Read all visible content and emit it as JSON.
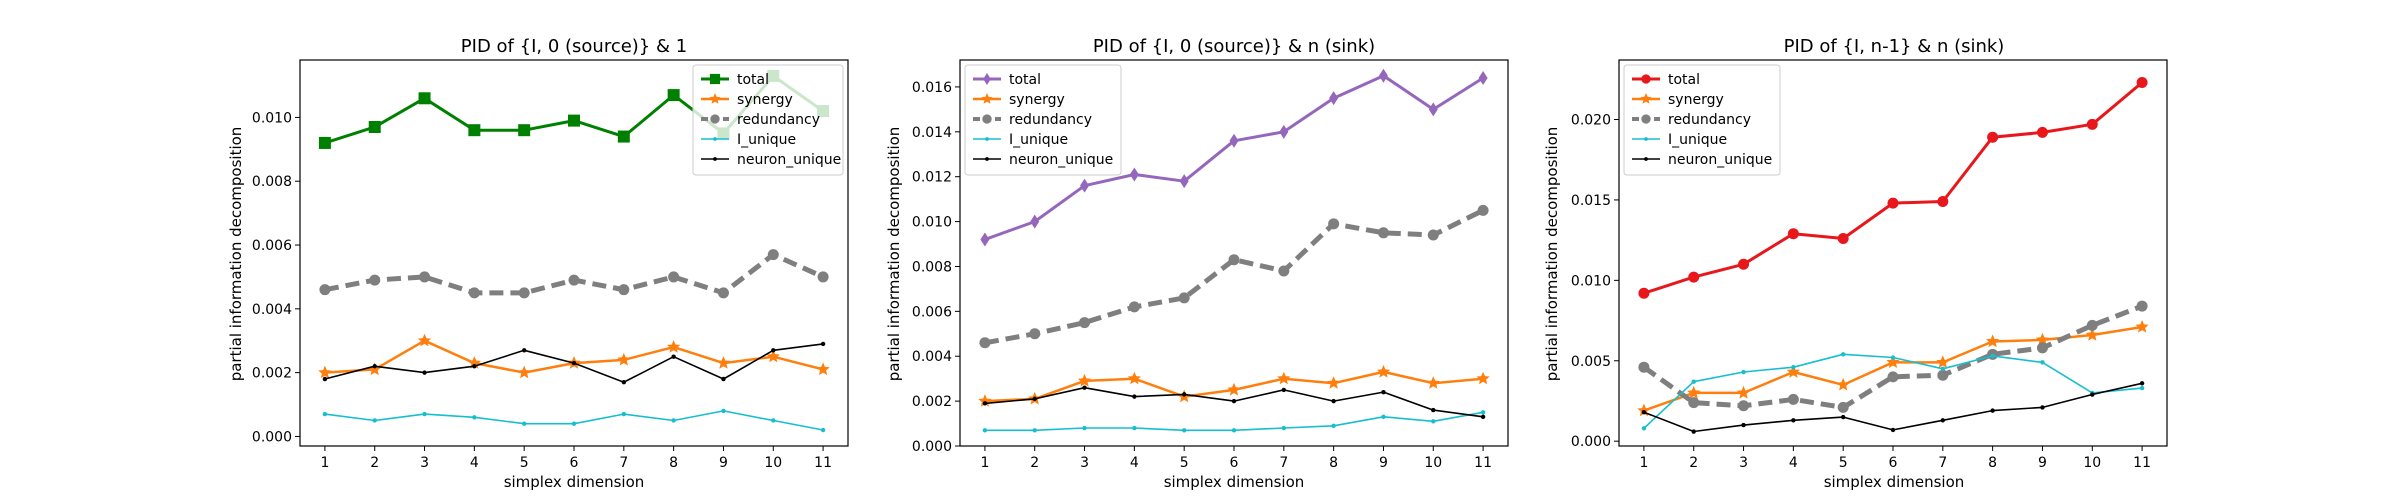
{
  "figure": {
    "series_styles": {
      "synergy": {
        "color": "#ff7f0e",
        "marker": "star",
        "dash": "solid",
        "lw": 2.5
      },
      "redundancy": {
        "color": "#7f7f7f",
        "marker": "circle",
        "dash": "dashed",
        "lw": 5
      },
      "I_unique": {
        "color": "#17becf",
        "marker": "point",
        "dash": "solid",
        "lw": 1.6
      },
      "neuron_unique": {
        "color": "#000000",
        "marker": "point",
        "dash": "solid",
        "lw": 1.6
      }
    },
    "panels": [
      {
        "name": "panel-1"
      },
      {
        "name": "panel-2"
      },
      {
        "name": "panel-3"
      }
    ]
  },
  "chart_data": [
    {
      "type": "line",
      "title": "PID of {I, 0 (source)} & 1",
      "xlabel": "simplex dimension",
      "ylabel": "partial information decomposition",
      "x": [
        1,
        2,
        3,
        4,
        5,
        6,
        7,
        8,
        9,
        10,
        11
      ],
      "xlim": [
        0.5,
        11.5
      ],
      "ylim": [
        -0.0003,
        0.0118
      ],
      "yticks": [
        0.0,
        0.002,
        0.004,
        0.006,
        0.008,
        0.01
      ],
      "ytick_labels": [
        "0.000",
        "0.002",
        "0.004",
        "0.006",
        "0.008",
        "0.010"
      ],
      "grid": false,
      "legend": "top-right",
      "series": [
        {
          "name": "total",
          "color": "#008000",
          "marker": "square",
          "values": [
            0.0092,
            0.0097,
            0.0106,
            0.0096,
            0.0096,
            0.0099,
            0.0094,
            0.0107,
            0.0095,
            0.0113,
            0.0102
          ]
        },
        {
          "name": "synergy",
          "values": [
            0.002,
            0.0021,
            0.003,
            0.0023,
            0.002,
            0.0023,
            0.0024,
            0.0028,
            0.0023,
            0.0025,
            0.0021
          ]
        },
        {
          "name": "redundancy",
          "values": [
            0.0046,
            0.0049,
            0.005,
            0.0045,
            0.0045,
            0.0049,
            0.0046,
            0.005,
            0.0045,
            0.0057,
            0.005
          ]
        },
        {
          "name": "I_unique",
          "values": [
            0.0007,
            0.0005,
            0.0007,
            0.0006,
            0.0004,
            0.0004,
            0.0007,
            0.0005,
            0.0008,
            0.0005,
            0.0002
          ]
        },
        {
          "name": "neuron_unique",
          "values": [
            0.0018,
            0.0022,
            0.002,
            0.0022,
            0.0027,
            0.0023,
            0.0017,
            0.0025,
            0.0018,
            0.0027,
            0.0029
          ]
        }
      ]
    },
    {
      "type": "line",
      "title": "PID of {I, 0 (source)} & n (sink)",
      "xlabel": "simplex dimension",
      "ylabel": "partial information decomposition",
      "x": [
        1,
        2,
        3,
        4,
        5,
        6,
        7,
        8,
        9,
        10,
        11
      ],
      "xlim": [
        0.5,
        11.5
      ],
      "ylim": [
        0.0,
        0.0172
      ],
      "yticks": [
        0.0,
        0.002,
        0.004,
        0.006,
        0.008,
        0.01,
        0.012,
        0.014,
        0.016
      ],
      "ytick_labels": [
        "0.000",
        "0.002",
        "0.004",
        "0.006",
        "0.008",
        "0.010",
        "0.012",
        "0.014",
        "0.016"
      ],
      "grid": false,
      "legend": "top-left",
      "series": [
        {
          "name": "total",
          "color": "#9467bd",
          "marker": "diamond",
          "values": [
            0.0092,
            0.01,
            0.0116,
            0.0121,
            0.0118,
            0.0136,
            0.014,
            0.0155,
            0.0165,
            0.015,
            0.0164
          ]
        },
        {
          "name": "synergy",
          "values": [
            0.002,
            0.0021,
            0.0029,
            0.003,
            0.0022,
            0.0025,
            0.003,
            0.0028,
            0.0033,
            0.0028,
            0.003
          ]
        },
        {
          "name": "redundancy",
          "values": [
            0.0046,
            0.005,
            0.0055,
            0.0062,
            0.0066,
            0.0083,
            0.0078,
            0.0099,
            0.0095,
            0.0094,
            0.0105
          ]
        },
        {
          "name": "I_unique",
          "values": [
            0.0007,
            0.0007,
            0.0008,
            0.0008,
            0.0007,
            0.0007,
            0.0008,
            0.0009,
            0.0013,
            0.0011,
            0.0015
          ]
        },
        {
          "name": "neuron_unique",
          "values": [
            0.0019,
            0.0021,
            0.0026,
            0.0022,
            0.0023,
            0.002,
            0.0025,
            0.002,
            0.0024,
            0.0016,
            0.0013
          ]
        }
      ]
    },
    {
      "type": "line",
      "title": "PID of {I, n-1} & n (sink)",
      "xlabel": "simplex dimension",
      "ylabel": "partial information decomposition",
      "x": [
        1,
        2,
        3,
        4,
        5,
        6,
        7,
        8,
        9,
        10,
        11
      ],
      "xlim": [
        0.5,
        11.5
      ],
      "ylim": [
        -0.0003,
        0.0237
      ],
      "yticks": [
        0.0,
        0.005,
        0.01,
        0.015,
        0.02
      ],
      "ytick_labels": [
        "0.000",
        "0.005",
        "0.010",
        "0.015",
        "0.020"
      ],
      "grid": false,
      "legend": "top-left",
      "series": [
        {
          "name": "total",
          "color": "#e8171c",
          "marker": "circle",
          "values": [
            0.0092,
            0.0102,
            0.011,
            0.0129,
            0.0126,
            0.0148,
            0.0149,
            0.0189,
            0.0192,
            0.0197,
            0.0223
          ]
        },
        {
          "name": "synergy",
          "values": [
            0.0019,
            0.003,
            0.003,
            0.0043,
            0.0035,
            0.0049,
            0.0049,
            0.0062,
            0.0063,
            0.0066,
            0.0071
          ]
        },
        {
          "name": "redundancy",
          "values": [
            0.0046,
            0.0024,
            0.0022,
            0.0026,
            0.0021,
            0.004,
            0.0041,
            0.0054,
            0.0058,
            0.0072,
            0.0084
          ]
        },
        {
          "name": "I_unique",
          "values": [
            0.0008,
            0.0037,
            0.0043,
            0.0046,
            0.0054,
            0.0052,
            0.0045,
            0.0053,
            0.0049,
            0.003,
            0.0033
          ]
        },
        {
          "name": "neuron_unique",
          "values": [
            0.0018,
            0.0006,
            0.001,
            0.0013,
            0.0015,
            0.0007,
            0.0013,
            0.0019,
            0.0021,
            0.0029,
            0.0036
          ]
        }
      ]
    }
  ]
}
